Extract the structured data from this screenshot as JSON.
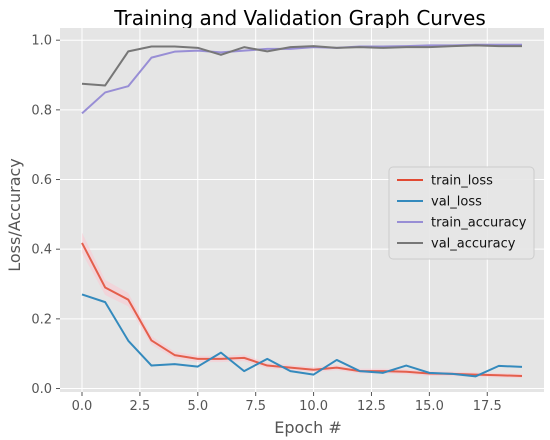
{
  "chart_data": {
    "type": "line",
    "title": "Training and Validation Graph Curves",
    "xlabel": "Epoch #",
    "ylabel": "Loss/Accuracy",
    "xlim": [
      -0.95,
      19.95
    ],
    "ylim": [
      -0.01,
      1.035
    ],
    "x": [
      0,
      1,
      2,
      3,
      4,
      5,
      6,
      7,
      8,
      9,
      10,
      11,
      12,
      13,
      14,
      15,
      16,
      17,
      18,
      19
    ],
    "x_ticks": [
      0.0,
      2.5,
      5.0,
      7.5,
      10.0,
      12.5,
      15.0,
      17.5
    ],
    "x_tick_labels": [
      "0.0",
      "2.5",
      "5.0",
      "7.5",
      "10.0",
      "12.5",
      "15.0",
      "17.5"
    ],
    "y_ticks": [
      0.0,
      0.2,
      0.4,
      0.6,
      0.8,
      1.0
    ],
    "y_tick_labels": [
      "0.0",
      "0.2",
      "0.4",
      "0.6",
      "0.8",
      "1.0"
    ],
    "grid": true,
    "legend_position": "center-right",
    "background": "#e5e5e5",
    "series": [
      {
        "name": "train_loss",
        "color": "#e24a33",
        "values": [
          0.418,
          0.29,
          0.255,
          0.138,
          0.096,
          0.085,
          0.085,
          0.088,
          0.066,
          0.06,
          0.054,
          0.06,
          0.05,
          0.05,
          0.048,
          0.043,
          0.042,
          0.04,
          0.038,
          0.036
        ]
      },
      {
        "name": "val_loss",
        "color": "#348abd",
        "values": [
          0.27,
          0.248,
          0.137,
          0.066,
          0.07,
          0.063,
          0.103,
          0.05,
          0.085,
          0.05,
          0.04,
          0.082,
          0.05,
          0.045,
          0.066,
          0.045,
          0.042,
          0.035,
          0.065,
          0.062
        ]
      },
      {
        "name": "train_accuracy",
        "color": "#988ed5",
        "values": [
          0.79,
          0.85,
          0.868,
          0.95,
          0.967,
          0.97,
          0.965,
          0.97,
          0.975,
          0.975,
          0.98,
          0.978,
          0.982,
          0.982,
          0.983,
          0.985,
          0.985,
          0.987,
          0.987,
          0.987
        ]
      },
      {
        "name": "val_accuracy",
        "color": "#777777",
        "values": [
          0.875,
          0.87,
          0.968,
          0.982,
          0.982,
          0.978,
          0.958,
          0.98,
          0.968,
          0.98,
          0.983,
          0.978,
          0.98,
          0.978,
          0.98,
          0.98,
          0.983,
          0.985,
          0.983,
          0.983
        ]
      }
    ]
  }
}
